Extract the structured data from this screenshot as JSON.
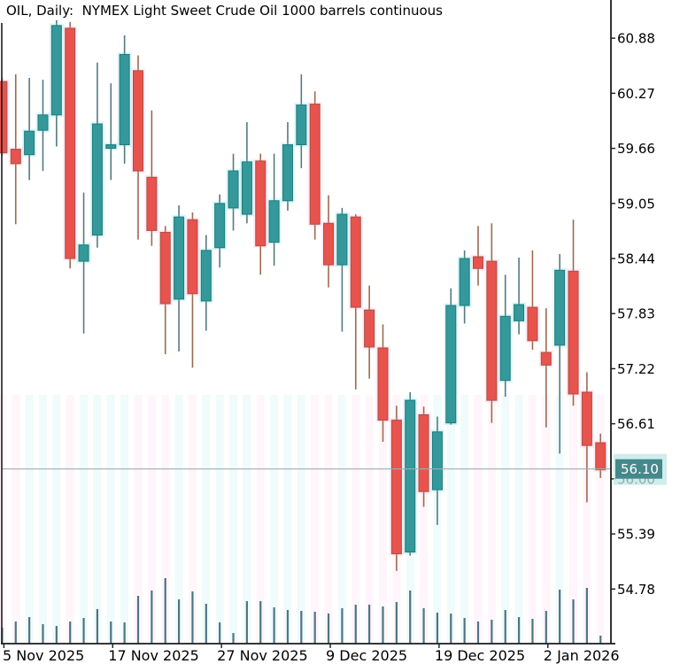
{
  "title": "OIL, Daily:  NYMEX Light Sweet Crude Oil 1000 barrels continuous",
  "current_price": {
    "value": "56.10"
  },
  "y_axis": {
    "ticks": [
      "60.88",
      "60.27",
      "59.66",
      "59.05",
      "58.44",
      "57.83",
      "57.22",
      "56.61",
      "56.00",
      "55.39",
      "54.78"
    ],
    "step": 0.61
  },
  "x_axis": {
    "labels": [
      {
        "label": "5 Nov 2025",
        "candle_index": 0
      },
      {
        "label": "17 Nov 2025",
        "candle_index": 8
      },
      {
        "label": "27 Nov 2025",
        "candle_index": 16
      },
      {
        "label": "9 Dec 2025",
        "candle_index": 24
      },
      {
        "label": "19 Dec 2025",
        "candle_index": 32
      },
      {
        "label": "2 Jan 2026",
        "candle_index": 40
      }
    ]
  },
  "colors": {
    "background": "#ffffff",
    "text": "#000000",
    "axis": "#1c1c1c",
    "up_fill": "#35989a",
    "up_border": "#1d7c7e",
    "up_wick": "#557a82",
    "down_fill": "#e8534e",
    "down_border": "#a94f41",
    "down_wick": "#9c6a50",
    "volume": "#4d7584",
    "price_line": "#9fadb0",
    "badge_bg": "#45898c",
    "badge_halo": "#bfe7e6",
    "badge_text": "#ffffff",
    "haze_up": "#69d8dc",
    "haze_down": "#ff9ed2"
  },
  "chart_data": {
    "type": "candlestick",
    "title": "OIL, Daily:  NYMEX Light Sweet Crude Oil 1000 barrels continuous",
    "timeframe": "Daily",
    "ylabel": "Price",
    "ylim": [
      54.45,
      61.3
    ],
    "y_tick_interval": 0.61,
    "grid": false,
    "current_price": 56.1,
    "volume_units": "relative",
    "candles": [
      {
        "o": 60.4,
        "h": 60.44,
        "l": 59.58,
        "c": 59.61,
        "v": 18
      },
      {
        "o": 59.65,
        "h": 60.48,
        "l": 58.82,
        "c": 59.49,
        "v": 25
      },
      {
        "o": 59.59,
        "h": 60.44,
        "l": 59.31,
        "c": 59.85,
        "v": 30
      },
      {
        "o": 59.86,
        "h": 60.42,
        "l": 59.41,
        "c": 60.03,
        "v": 22
      },
      {
        "o": 60.03,
        "h": 61.08,
        "l": 59.68,
        "c": 61.02,
        "v": 20
      },
      {
        "o": 60.99,
        "h": 61.06,
        "l": 58.33,
        "c": 58.44,
        "v": 25
      },
      {
        "o": 58.41,
        "h": 59.17,
        "l": 57.61,
        "c": 58.59,
        "v": 29
      },
      {
        "o": 58.7,
        "h": 60.61,
        "l": 58.56,
        "c": 59.93,
        "v": 39
      },
      {
        "o": 59.66,
        "h": 60.38,
        "l": 59.31,
        "c": 59.7,
        "v": 25
      },
      {
        "o": 59.7,
        "h": 60.91,
        "l": 59.49,
        "c": 60.7,
        "v": 24
      },
      {
        "o": 60.52,
        "h": 60.69,
        "l": 58.65,
        "c": 59.41,
        "v": 54
      },
      {
        "o": 59.34,
        "h": 60.08,
        "l": 58.58,
        "c": 58.75,
        "v": 60
      },
      {
        "o": 58.73,
        "h": 58.8,
        "l": 57.38,
        "c": 57.94,
        "v": 74
      },
      {
        "o": 57.99,
        "h": 59.03,
        "l": 57.41,
        "c": 58.9,
        "v": 50
      },
      {
        "o": 58.87,
        "h": 58.95,
        "l": 57.23,
        "c": 58.05,
        "v": 59
      },
      {
        "o": 57.97,
        "h": 58.7,
        "l": 57.64,
        "c": 58.53,
        "v": 45
      },
      {
        "o": 58.56,
        "h": 59.15,
        "l": 58.34,
        "c": 59.05,
        "v": 24
      },
      {
        "o": 59.0,
        "h": 59.6,
        "l": 58.75,
        "c": 59.41,
        "v": 12
      },
      {
        "o": 58.93,
        "h": 59.95,
        "l": 58.83,
        "c": 59.51,
        "v": 48
      },
      {
        "o": 59.52,
        "h": 59.6,
        "l": 58.26,
        "c": 58.58,
        "v": 48
      },
      {
        "o": 58.62,
        "h": 59.6,
        "l": 58.36,
        "c": 59.08,
        "v": 41
      },
      {
        "o": 59.08,
        "h": 59.95,
        "l": 58.97,
        "c": 59.7,
        "v": 38
      },
      {
        "o": 59.7,
        "h": 60.48,
        "l": 59.44,
        "c": 60.14,
        "v": 37
      },
      {
        "o": 60.15,
        "h": 60.29,
        "l": 58.65,
        "c": 58.82,
        "v": 36
      },
      {
        "o": 58.83,
        "h": 59.14,
        "l": 58.12,
        "c": 58.37,
        "v": 34
      },
      {
        "o": 58.37,
        "h": 59.0,
        "l": 57.63,
        "c": 58.93,
        "v": 40
      },
      {
        "o": 58.9,
        "h": 58.93,
        "l": 56.99,
        "c": 57.9,
        "v": 44
      },
      {
        "o": 57.87,
        "h": 58.14,
        "l": 57.11,
        "c": 57.46,
        "v": 44
      },
      {
        "o": 57.45,
        "h": 57.71,
        "l": 56.41,
        "c": 56.65,
        "v": 42
      },
      {
        "o": 56.65,
        "h": 56.81,
        "l": 54.98,
        "c": 55.17,
        "v": 47
      },
      {
        "o": 55.19,
        "h": 56.96,
        "l": 55.15,
        "c": 56.87,
        "v": 60
      },
      {
        "o": 56.71,
        "h": 56.8,
        "l": 55.69,
        "c": 55.86,
        "v": 40
      },
      {
        "o": 55.88,
        "h": 56.69,
        "l": 55.49,
        "c": 56.52,
        "v": 35
      },
      {
        "o": 56.62,
        "h": 58.11,
        "l": 56.6,
        "c": 57.92,
        "v": 34
      },
      {
        "o": 57.92,
        "h": 58.53,
        "l": 57.72,
        "c": 58.44,
        "v": 29
      },
      {
        "o": 58.46,
        "h": 58.8,
        "l": 58.14,
        "c": 58.33,
        "v": 25
      },
      {
        "o": 58.41,
        "h": 58.83,
        "l": 56.62,
        "c": 56.87,
        "v": 27
      },
      {
        "o": 57.09,
        "h": 58.26,
        "l": 56.91,
        "c": 57.8,
        "v": 38
      },
      {
        "o": 57.75,
        "h": 58.45,
        "l": 57.6,
        "c": 57.93,
        "v": 30
      },
      {
        "o": 57.9,
        "h": 58.53,
        "l": 57.43,
        "c": 57.53,
        "v": 28
      },
      {
        "o": 57.4,
        "h": 57.89,
        "l": 56.57,
        "c": 57.26,
        "v": 37
      },
      {
        "o": 57.48,
        "h": 58.49,
        "l": 56.28,
        "c": 58.31,
        "v": 61
      },
      {
        "o": 58.3,
        "h": 58.87,
        "l": 56.81,
        "c": 56.94,
        "v": 50
      },
      {
        "o": 56.96,
        "h": 57.18,
        "l": 55.74,
        "c": 56.37,
        "v": 63
      },
      {
        "o": 56.4,
        "h": 56.5,
        "l": 56.01,
        "c": 56.1,
        "v": 9
      }
    ],
    "x_tick_labels": [
      "5 Nov 2025",
      "17 Nov 2025",
      "27 Nov 2025",
      "9 Dec 2025",
      "19 Dec 2025",
      "2 Jan 2026"
    ],
    "x_tick_candle_indices": [
      0,
      8,
      16,
      24,
      32,
      40
    ],
    "y_tick_labels": [
      "60.88",
      "60.27",
      "59.66",
      "59.05",
      "58.44",
      "57.83",
      "57.22",
      "56.61",
      "56.00",
      "55.39",
      "54.78"
    ],
    "legend": "none"
  }
}
